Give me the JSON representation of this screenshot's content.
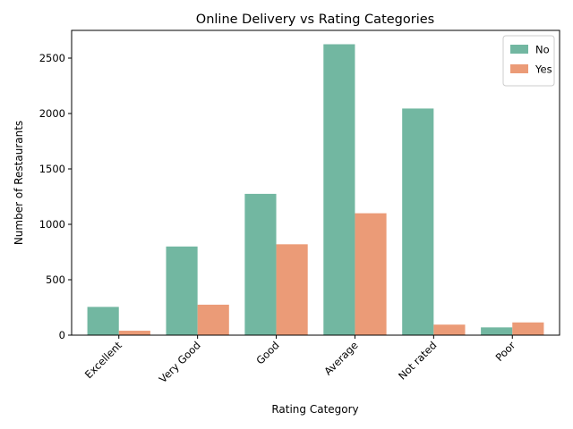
{
  "chart_data": {
    "type": "bar",
    "title": "Online Delivery vs Rating Categories",
    "xlabel": "Rating Category",
    "ylabel": "Number of Restaurants",
    "categories": [
      "Excellent",
      "Very Good",
      "Good",
      "Average",
      "Not rated",
      "Poor"
    ],
    "series": [
      {
        "name": "No",
        "color": "#72b7a1",
        "values": [
          255,
          800,
          1275,
          2625,
          2045,
          70
        ]
      },
      {
        "name": "Yes",
        "color": "#eb9b77",
        "values": [
          40,
          275,
          820,
          1100,
          95,
          115
        ]
      }
    ],
    "ylim": [
      0,
      2750
    ],
    "yticks": [
      0,
      500,
      1000,
      1500,
      2000,
      2500
    ],
    "grid": false,
    "legend_position": "top-right"
  }
}
